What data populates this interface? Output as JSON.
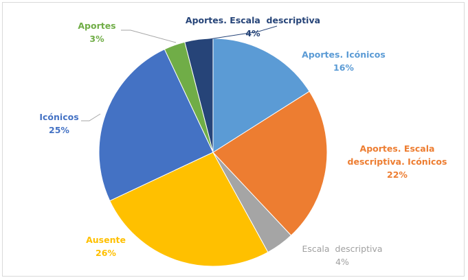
{
  "chart_data": {
    "type": "pie",
    "categories": [
      "Aportes. Icónicos",
      "Aportes. Escala descriptiva. Icónicos",
      "Escala  descriptiva",
      "Ausente",
      "Icónicos",
      "Aportes",
      "Aportes. Escala  descriptiva"
    ],
    "values": [
      16,
      22,
      4,
      26,
      25,
      3,
      4
    ],
    "value_labels": [
      "16%",
      "22%",
      "4%",
      "26%",
      "25%",
      "3%",
      "4%"
    ],
    "colors": [
      "#5b9bd5",
      "#ed7d31",
      "#a5a5a5",
      "#ffc000",
      "#4472c4",
      "#70ad47",
      "#264478"
    ]
  }
}
